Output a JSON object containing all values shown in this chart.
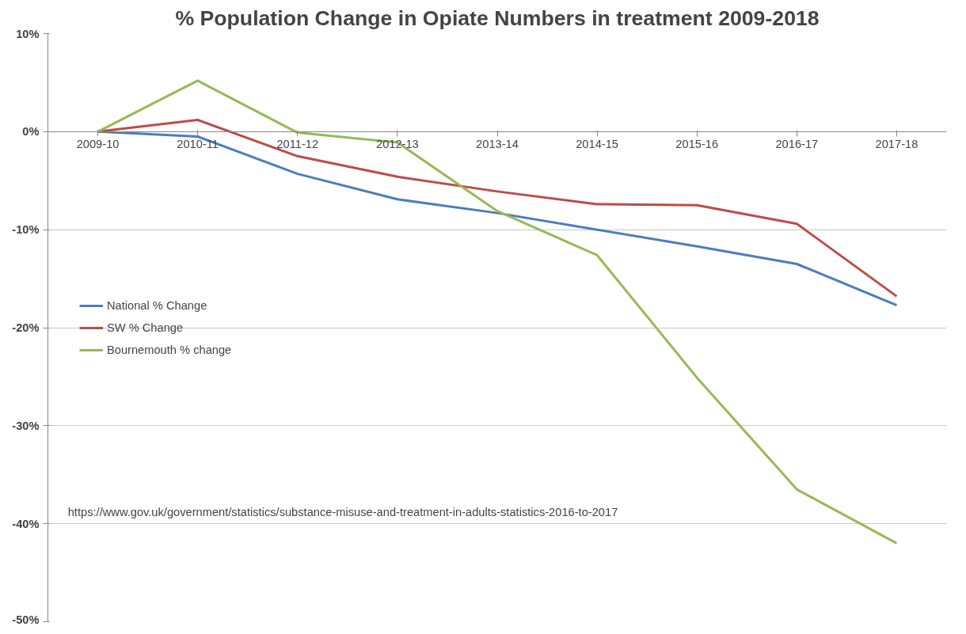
{
  "chart_data": {
    "type": "line",
    "title": "% Population Change in Opiate Numbers in treatment 2009-2018",
    "categories": [
      "2009-10",
      "2010-11",
      "2011-12",
      "2012-13",
      "2013-14",
      "2014-15",
      "2015-16",
      "2016-17",
      "2017-18"
    ],
    "series": [
      {
        "name": "National % Change",
        "color": "#4a7ebb",
        "values": [
          0,
          -0.5,
          -4.3,
          -6.9,
          -8.3,
          -10.0,
          -11.7,
          -13.5,
          -17.7
        ]
      },
      {
        "name": "SW % Change",
        "color": "#be4b48",
        "values": [
          0,
          1.2,
          -2.5,
          -4.6,
          -6.1,
          -7.4,
          -7.5,
          -9.4,
          -16.8
        ]
      },
      {
        "name": "Bournemouth % change",
        "color": "#98b954",
        "values": [
          0,
          5.2,
          -0.1,
          -1.1,
          -8.1,
          -12.6,
          -25.1,
          -36.5,
          -42.0
        ]
      }
    ],
    "ylim": [
      -50,
      10
    ],
    "yticks": [
      {
        "value": -50,
        "label": "-50%"
      },
      {
        "value": -40,
        "label": "-40%"
      },
      {
        "value": -30,
        "label": "-30%"
      },
      {
        "value": -20,
        "label": "-20%"
      },
      {
        "value": -10,
        "label": "-10%"
      },
      {
        "value": 0,
        "label": "0%"
      },
      {
        "value": 10,
        "label": "10%"
      }
    ],
    "grid": "y",
    "legend": "left",
    "marker": "none",
    "line_style": "solid",
    "annotations": [
      "https://www.gov.uk/government/statistics/substance-misuse-and-treatment-in-adults-statistics-2016-to-2017"
    ]
  }
}
